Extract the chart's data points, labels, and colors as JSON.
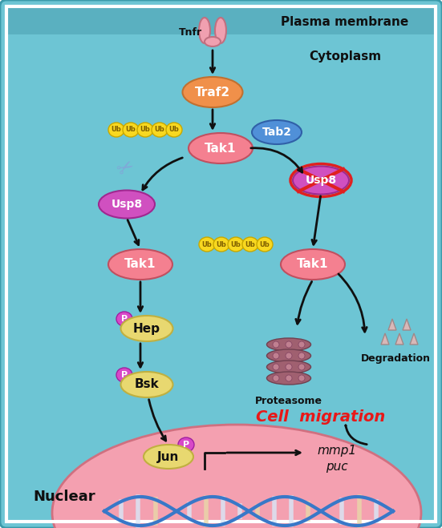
{
  "bg_outer": "#5bb8c8",
  "bg_cytoplasm": "#6dc5d4",
  "bg_nucleus": "#f4a0b0",
  "bg_outer_border": "#4aa8b8",
  "title_plasma": "Plasma membrane",
  "title_cytoplasm": "Cytoplasm",
  "title_nuclear": "Nuclear",
  "title_cell_migration": "Cell  migration",
  "label_tnfr": "Tnfr",
  "label_traf2": "Traf2",
  "label_tab2": "Tab2",
  "label_tak1_center": "Tak1",
  "label_usp8_left": "Usp8",
  "label_usp8_right": "Usp8",
  "label_tak1_left": "Tak1",
  "label_tak1_right": "Tak1",
  "label_hep": "Hep",
  "label_bsk": "Bsk",
  "label_jun": "Jun",
  "label_proteasome": "Proteasome",
  "label_degradation": "Degradation",
  "label_mmp1puc": "mmp1\npuc",
  "label_ub": "Ub",
  "color_pink_ellipse": "#f48090",
  "color_orange_ellipse": "#f0904a",
  "color_blue_ellipse": "#5090d8",
  "color_yellow_circle": "#f8d820",
  "color_magenta_circle": "#d848c8",
  "color_tan_circle": "#e8d898",
  "color_red_cross": "#e02020",
  "color_arrow": "#101010",
  "color_text_dark": "#101010",
  "color_text_red": "#e81818",
  "color_text_white": "#ffffff",
  "color_text_black": "#000000",
  "dna_blue": "#3878c8",
  "dna_light": "#d8e8f8",
  "dna_stripe": "#e8d8a8"
}
